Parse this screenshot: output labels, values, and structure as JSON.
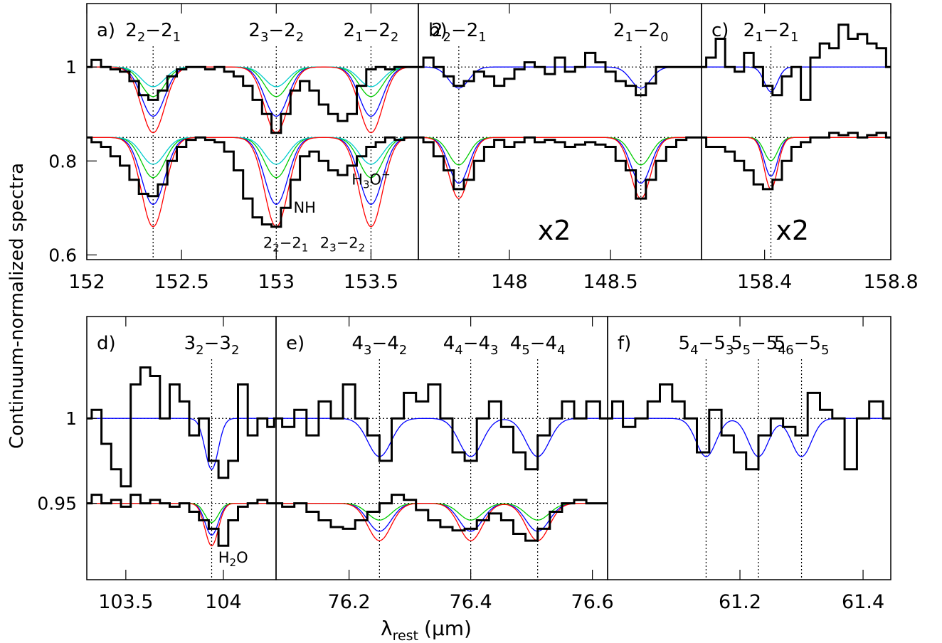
{
  "y_axis_label": "Continuum-normalized spectra",
  "x_axis_label": "λ",
  "x_axis_label_sub": "rest",
  "x_axis_label_unit": "(μm)",
  "colors": {
    "spectrum": "#000000",
    "total_fit": "#ff0000",
    "component_blue": "#0000ff",
    "component_green": "#00cc00",
    "component_cyan": "#00cccc"
  },
  "chart_data": [
    {
      "panel": "a)",
      "type": "line",
      "xlim": [
        152.0,
        153.75
      ],
      "ylim": [
        0.59,
        1.135
      ],
      "x_ticks": [
        "152",
        "152.5",
        "153",
        "153.5"
      ],
      "x_tick_values": [
        152.0,
        152.5,
        153.0,
        153.5
      ],
      "y_ticks": [
        "0.6",
        "0.8",
        "1"
      ],
      "y_tick_values": [
        0.6,
        0.8,
        1.0
      ],
      "continua": [
        1.0,
        0.85
      ],
      "transitions": [
        {
          "base": "2",
          "sub1": "2",
          "sub2": "1",
          "x": 152.35
        },
        {
          "base": "2",
          "sub1": "3",
          "sub2": "2",
          "x": 153.0
        },
        {
          "base": "2",
          "sub1": "1",
          "sub2": "2",
          "x": 153.5
        }
      ],
      "annotations": [
        {
          "text": "NH",
          "x": 153.15,
          "y": 0.69
        },
        {
          "text": "H",
          "sub": "3",
          "rest": "O",
          "sup": "+",
          "x": 153.5,
          "y": 0.75
        },
        {
          "text": "2",
          "sub1": "2",
          "sub2": "1",
          "x": 153.05,
          "y": 0.615
        },
        {
          "text": "2",
          "sub1": "3",
          "sub2": "2",
          "x": 153.35,
          "y": 0.615
        }
      ],
      "series": [
        {
          "offset": 1.0,
          "x": [
            152.0,
            152.05,
            152.1,
            152.15,
            152.2,
            152.25,
            152.3,
            152.35,
            152.4,
            152.45,
            152.5,
            152.55,
            152.6,
            152.65,
            152.7,
            152.75,
            152.8,
            152.85,
            152.9,
            152.95,
            153.0,
            153.05,
            153.1,
            153.15,
            153.2,
            153.25,
            153.3,
            153.35,
            153.4,
            153.45,
            153.5,
            153.55,
            153.6,
            153.65,
            153.7,
            153.75
          ],
          "y": [
            1.0,
            1.015,
            1.0,
            0.995,
            0.99,
            0.97,
            0.94,
            0.93,
            0.95,
            0.98,
            0.995,
            1.0,
            1.0,
            0.995,
            1.0,
            0.99,
            0.98,
            0.96,
            0.93,
            0.9,
            0.86,
            0.9,
            0.95,
            0.97,
            0.95,
            0.92,
            0.9,
            0.885,
            0.9,
            0.96,
            0.995,
            1.0,
            0.995,
            1.0,
            1.0,
            1.0
          ]
        },
        {
          "offset": 0.85,
          "x": [
            152.0,
            152.05,
            152.1,
            152.15,
            152.2,
            152.25,
            152.3,
            152.35,
            152.4,
            152.45,
            152.5,
            152.55,
            152.6,
            152.65,
            152.7,
            152.75,
            152.8,
            152.85,
            152.9,
            152.95,
            153.0,
            153.05,
            153.1,
            153.15,
            153.2,
            153.25,
            153.3,
            153.35,
            153.4,
            153.45,
            153.5,
            153.55,
            153.6,
            153.65,
            153.7,
            153.75
          ],
          "y": [
            0.85,
            0.84,
            0.83,
            0.81,
            0.79,
            0.76,
            0.73,
            0.725,
            0.75,
            0.8,
            0.83,
            0.845,
            0.85,
            0.845,
            0.84,
            0.82,
            0.78,
            0.72,
            0.68,
            0.665,
            0.66,
            0.7,
            0.76,
            0.81,
            0.82,
            0.8,
            0.78,
            0.77,
            0.79,
            0.81,
            0.83,
            0.84,
            0.85,
            0.845,
            0.85,
            0.85
          ]
        }
      ]
    },
    {
      "panel": "b)",
      "type": "line",
      "xlim": [
        147.55,
        148.95
      ],
      "ylim": [
        0.59,
        1.135
      ],
      "x_ticks": [
        "148",
        "148.5"
      ],
      "x_tick_values": [
        148.0,
        148.5
      ],
      "continua": [
        1.0,
        0.85
      ],
      "transitions": [
        {
          "base": "2",
          "sub1": "2",
          "sub2": "1",
          "x": 147.75
        },
        {
          "base": "2",
          "sub1": "1",
          "sub2": "0",
          "x": 148.65
        }
      ],
      "scale_label": "x2",
      "series": [
        {
          "offset": 1.0,
          "x": [
            147.55,
            147.6,
            147.65,
            147.7,
            147.75,
            147.8,
            147.85,
            147.9,
            147.95,
            148.0,
            148.05,
            148.1,
            148.15,
            148.2,
            148.25,
            148.3,
            148.35,
            148.4,
            148.45,
            148.5,
            148.55,
            148.6,
            148.65,
            148.7,
            148.75,
            148.8,
            148.85,
            148.9,
            148.95
          ],
          "y": [
            1.0,
            1.02,
            1.0,
            0.98,
            0.96,
            0.97,
            0.99,
            0.98,
            0.96,
            0.975,
            0.995,
            1.01,
            1.0,
            0.985,
            1.02,
            0.99,
            1.0,
            1.03,
            1.01,
            0.99,
            0.97,
            0.96,
            0.94,
            0.965,
            1.0,
            1.0,
            1.0,
            1.0,
            1.0
          ]
        },
        {
          "offset": 0.85,
          "x": [
            147.55,
            147.6,
            147.65,
            147.7,
            147.75,
            147.8,
            147.85,
            147.9,
            147.95,
            148.0,
            148.05,
            148.1,
            148.15,
            148.2,
            148.25,
            148.3,
            148.35,
            148.4,
            148.45,
            148.5,
            148.55,
            148.6,
            148.65,
            148.7,
            148.75,
            148.8,
            148.85,
            148.9,
            148.95
          ],
          "y": [
            0.85,
            0.84,
            0.81,
            0.78,
            0.74,
            0.76,
            0.8,
            0.83,
            0.845,
            0.83,
            0.84,
            0.85,
            0.84,
            0.845,
            0.84,
            0.83,
            0.835,
            0.84,
            0.835,
            0.83,
            0.8,
            0.78,
            0.72,
            0.76,
            0.8,
            0.83,
            0.845,
            0.85,
            0.85
          ]
        }
      ]
    },
    {
      "panel": "c)",
      "type": "line",
      "xlim": [
        158.2,
        158.8
      ],
      "ylim": [
        0.59,
        1.135
      ],
      "x_ticks": [
        "158.4",
        "158.8"
      ],
      "x_tick_values": [
        158.4,
        158.8
      ],
      "continua": [
        1.0,
        0.85
      ],
      "transitions": [
        {
          "base": "2",
          "sub1": "1",
          "sub2": "1",
          "x": 158.42
        }
      ],
      "scale_label": "x2",
      "series": [
        {
          "offset": 1.0,
          "x": [
            158.2,
            158.23,
            158.26,
            158.29,
            158.32,
            158.35,
            158.38,
            158.41,
            158.44,
            158.47,
            158.5,
            158.53,
            158.56,
            158.59,
            158.62,
            158.65,
            158.68,
            158.71,
            158.74,
            158.77,
            158.8
          ],
          "y": [
            1.0,
            1.02,
            1.06,
            1.0,
            0.99,
            1.03,
            1.0,
            0.96,
            0.94,
            0.98,
            1.0,
            0.93,
            1.02,
            1.05,
            1.04,
            1.09,
            1.06,
            1.07,
            1.05,
            1.04,
            1.0
          ]
        },
        {
          "offset": 0.85,
          "x": [
            158.2,
            158.23,
            158.26,
            158.29,
            158.32,
            158.35,
            158.38,
            158.41,
            158.44,
            158.47,
            158.5,
            158.53,
            158.56,
            158.59,
            158.62,
            158.65,
            158.68,
            158.71,
            158.74,
            158.77,
            158.8
          ],
          "y": [
            0.85,
            0.83,
            0.83,
            0.82,
            0.8,
            0.78,
            0.75,
            0.74,
            0.76,
            0.8,
            0.83,
            0.84,
            0.85,
            0.85,
            0.86,
            0.855,
            0.86,
            0.85,
            0.855,
            0.86,
            0.85
          ]
        }
      ]
    },
    {
      "panel": "d)",
      "type": "line",
      "xlim": [
        103.3,
        104.27
      ],
      "ylim": [
        0.905,
        1.06
      ],
      "x_ticks": [
        "103.5",
        "104"
      ],
      "x_tick_values": [
        103.5,
        104.0
      ],
      "y_ticks": [
        "0.95",
        "1"
      ],
      "y_tick_values": [
        0.95,
        1.0
      ],
      "continua": [
        1.0,
        0.95
      ],
      "transitions": [
        {
          "base": "3",
          "sub1": "2",
          "sub2": "2",
          "x": 103.94
        }
      ],
      "annotations": [
        {
          "text": "H",
          "sub": "2",
          "rest": "O",
          "x": 104.05,
          "y": 0.915
        }
      ],
      "series": [
        {
          "offset": 1.0,
          "x": [
            103.3,
            103.35,
            103.4,
            103.45,
            103.5,
            103.55,
            103.6,
            103.65,
            103.7,
            103.75,
            103.8,
            103.85,
            103.9,
            103.95,
            104.0,
            104.05,
            104.1,
            104.15,
            104.2,
            104.25,
            104.27
          ],
          "y": [
            1.0,
            1.005,
            0.985,
            0.97,
            0.96,
            1.02,
            1.03,
            1.025,
            1.0,
            1.02,
            1.01,
            0.99,
            1.0,
            0.975,
            0.965,
            0.975,
            1.02,
            0.99,
            1.0,
            0.995,
            1.0
          ]
        },
        {
          "offset": 0.95,
          "x": [
            103.3,
            103.35,
            103.4,
            103.45,
            103.5,
            103.55,
            103.6,
            103.65,
            103.7,
            103.75,
            103.8,
            103.85,
            103.9,
            103.95,
            104.0,
            104.05,
            104.1,
            104.15,
            104.2,
            104.25,
            104.27
          ],
          "y": [
            0.95,
            0.955,
            0.95,
            0.952,
            0.948,
            0.955,
            0.95,
            0.952,
            0.95,
            0.948,
            0.95,
            0.945,
            0.94,
            0.935,
            0.925,
            0.94,
            0.948,
            0.95,
            0.952,
            0.95,
            0.95
          ]
        }
      ]
    },
    {
      "panel": "e)",
      "type": "line",
      "xlim": [
        76.08,
        76.625
      ],
      "ylim": [
        0.905,
        1.06
      ],
      "x_ticks": [
        "76.2",
        "76.4",
        "76.6"
      ],
      "x_tick_values": [
        76.2,
        76.4,
        76.6
      ],
      "continua": [
        1.0,
        0.95
      ],
      "transitions": [
        {
          "base": "4",
          "sub1": "3",
          "sub2": "2",
          "x": 76.25
        },
        {
          "base": "4",
          "sub1": "4",
          "sub2": "3",
          "x": 76.4
        },
        {
          "base": "4",
          "sub1": "5",
          "sub2": "4",
          "x": 76.51
        }
      ],
      "series": [
        {
          "offset": 1.0,
          "x": [
            76.08,
            76.1,
            76.12,
            76.14,
            76.16,
            76.18,
            76.2,
            76.22,
            76.24,
            76.26,
            76.28,
            76.3,
            76.32,
            76.34,
            76.36,
            76.38,
            76.4,
            76.42,
            76.44,
            76.46,
            76.48,
            76.5,
            76.52,
            76.54,
            76.56,
            76.58,
            76.6,
            76.625
          ],
          "y": [
            1.0,
            0.995,
            1.005,
            0.99,
            1.01,
            1.0,
            1.02,
            1.0,
            0.99,
            0.975,
            1.0,
            1.015,
            1.01,
            1.02,
            1.0,
            0.98,
            0.975,
            1.0,
            1.01,
            0.995,
            0.98,
            0.97,
            0.99,
            1.0,
            1.01,
            1.0,
            1.01,
            1.0
          ]
        },
        {
          "offset": 0.95,
          "x": [
            76.08,
            76.1,
            76.12,
            76.14,
            76.16,
            76.18,
            76.2,
            76.22,
            76.24,
            76.26,
            76.28,
            76.3,
            76.32,
            76.34,
            76.36,
            76.38,
            76.4,
            76.42,
            76.44,
            76.46,
            76.48,
            76.5,
            76.52,
            76.54,
            76.56,
            76.58,
            76.6,
            76.625
          ],
          "y": [
            0.95,
            0.948,
            0.95,
            0.945,
            0.94,
            0.936,
            0.935,
            0.94,
            0.945,
            0.95,
            0.955,
            0.952,
            0.946,
            0.94,
            0.936,
            0.934,
            0.935,
            0.94,
            0.944,
            0.94,
            0.932,
            0.928,
            0.935,
            0.945,
            0.95,
            0.952,
            0.95,
            0.95
          ]
        }
      ]
    },
    {
      "panel": "f)",
      "type": "line",
      "xlim": [
        60.985,
        61.445
      ],
      "ylim": [
        0.905,
        1.06
      ],
      "x_ticks": [
        "61.2",
        "61.4"
      ],
      "x_tick_values": [
        61.2,
        61.4
      ],
      "continua": [
        1.0
      ],
      "transitions": [
        {
          "base": "5",
          "sub1": "4",
          "sub2": "3",
          "x": 61.145
        },
        {
          "base": "5",
          "sub1": "5",
          "sub2": "4",
          "x": 61.23
        },
        {
          "base": "5",
          "sub1": "6",
          "sub2": "5",
          "x": 61.3
        }
      ],
      "series": [
        {
          "offset": 1.0,
          "x": [
            60.985,
            61.0,
            61.02,
            61.04,
            61.06,
            61.08,
            61.1,
            61.12,
            61.14,
            61.16,
            61.18,
            61.2,
            61.22,
            61.24,
            61.26,
            61.28,
            61.3,
            61.32,
            61.34,
            61.36,
            61.38,
            61.4,
            61.42,
            61.445
          ],
          "y": [
            1.0,
            1.01,
            0.995,
            1.0,
            1.01,
            1.02,
            1.01,
            1.0,
            0.98,
            1.005,
            0.99,
            0.98,
            0.97,
            0.99,
            1.0,
            0.995,
            0.99,
            1.015,
            1.005,
            1.0,
            0.97,
            1.0,
            1.01,
            1.0
          ]
        }
      ]
    }
  ]
}
